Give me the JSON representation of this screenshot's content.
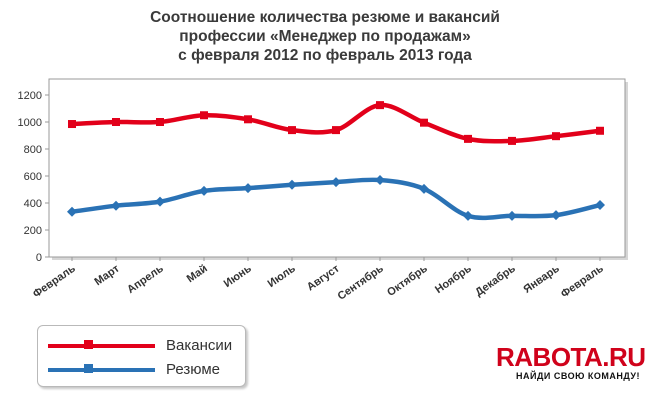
{
  "chart_data": {
    "type": "line",
    "title_lines": [
      "Соотношение количества резюме и вакансий",
      "профессии «Менеджер по продажам»",
      "с февраля 2012 по февраль 2013 года"
    ],
    "categories": [
      "Февраль",
      "Март",
      "Апрель",
      "Май",
      "Июнь",
      "Июль",
      "Август",
      "Сентябрь",
      "Октябрь",
      "Ноябрь",
      "Декабрь",
      "Январь",
      "Февраль"
    ],
    "yticks": [
      "0",
      "200",
      "400",
      "600",
      "800",
      "1000",
      "1200"
    ],
    "ylim": [
      0,
      1200
    ],
    "series": [
      {
        "name": "Вакансии",
        "color": "#e2001a",
        "marker": "square",
        "values": [
          985,
          1000,
          1000,
          1050,
          1020,
          940,
          940,
          1125,
          995,
          875,
          860,
          895,
          935
        ]
      },
      {
        "name": "Резюме",
        "color": "#2a72b5",
        "marker": "diamond",
        "values": [
          335,
          380,
          410,
          490,
          510,
          535,
          555,
          570,
          505,
          305,
          305,
          310,
          385
        ]
      }
    ],
    "grid": false,
    "legend_position": "bottom-left"
  },
  "logo": {
    "text": "RABOTA.RU",
    "tagline": "НАЙДИ СВОЮ КОМАНДУ!"
  }
}
